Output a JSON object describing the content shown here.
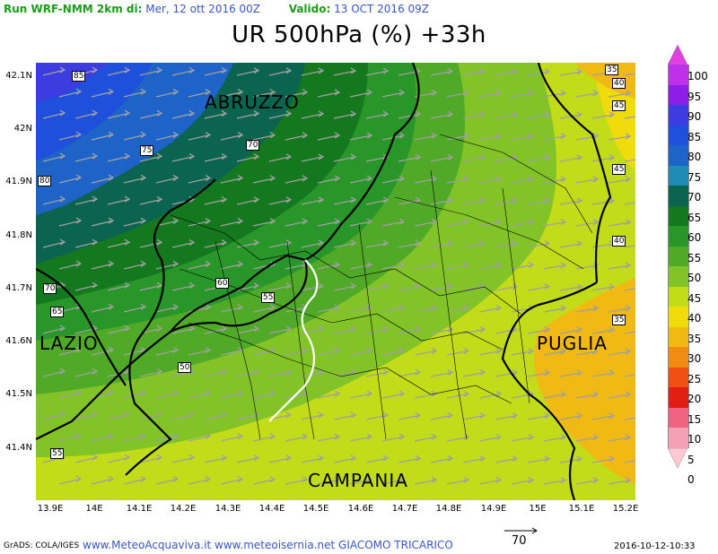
{
  "header": {
    "run_label": "Run WRF-NMM 2km di:",
    "run_date": "Mer, 12 ott 2016 00Z",
    "valid_label": "Valido:",
    "valid_date": "13 OCT 2016 09Z"
  },
  "title": "UR 500hPa (%) +33h",
  "regions": {
    "abruzzo": "ABRUZZO",
    "lazio": "LAZIO",
    "puglia": "PUGLIA",
    "campania": "CAMPANIA"
  },
  "lat_labels": [
    "42.1N",
    "42N",
    "41.9N",
    "41.8N",
    "41.7N",
    "41.6N",
    "41.5N",
    "41.4N"
  ],
  "lon_labels": [
    "13.9E",
    "14E",
    "14.1E",
    "14.2E",
    "14.3E",
    "14.4E",
    "14.5E",
    "14.6E",
    "14.7E",
    "14.8E",
    "14.9E",
    "15E",
    "15.1E",
    "15.2E"
  ],
  "contour_labels": [
    "85",
    "75",
    "70",
    "80",
    "60",
    "55",
    "70",
    "65",
    "50",
    "55",
    "35",
    "40",
    "45",
    "45",
    "40",
    "35"
  ],
  "colorbar": {
    "labels": [
      "100",
      "95",
      "90",
      "85",
      "80",
      "75",
      "70",
      "65",
      "60",
      "55",
      "50",
      "45",
      "40",
      "35",
      "30",
      "25",
      "20",
      "15",
      "10",
      "5",
      "0"
    ],
    "colors": [
      "#e040e0",
      "#c030e8",
      "#8c1ee8",
      "#3c3ce0",
      "#1e50dc",
      "#1e64c8",
      "#1e8cb4",
      "#0a6450",
      "#14781e",
      "#289628",
      "#50aa28",
      "#82c328",
      "#c3dc19",
      "#f0dc0a",
      "#f0b914",
      "#f08c14",
      "#f05014",
      "#e11e14",
      "#f06482",
      "#f5a0b4",
      "#ffc8d2"
    ]
  },
  "wind_legend": "70",
  "footer": {
    "grads": "GrADS: COLA/IGES",
    "credits": "www.MeteoAcquaviva.it www.meteoisernia.net GIACOMO TRICARICO",
    "timestamp": "2016-10-12-10:33"
  }
}
